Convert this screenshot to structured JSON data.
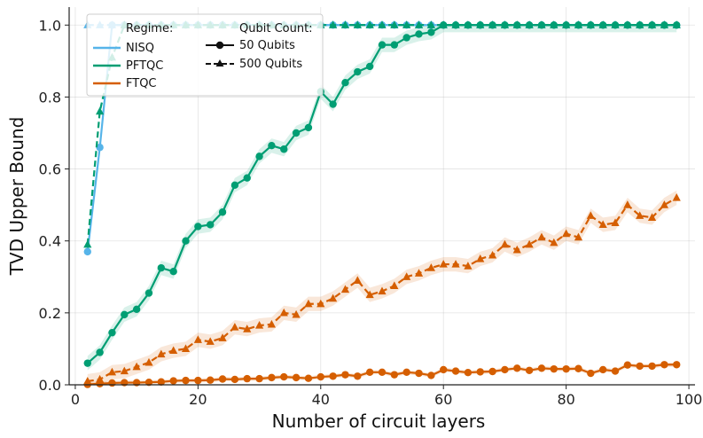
{
  "chart_data": {
    "type": "line",
    "title": "",
    "xlabel": "Number of circuit layers",
    "ylabel": "TVD Upper Bound",
    "xlim": [
      -1,
      101
    ],
    "ylim": [
      0,
      1.05
    ],
    "xticks": [
      0,
      20,
      40,
      60,
      80,
      100
    ],
    "yticks": [
      0.0,
      0.2,
      0.4,
      0.6,
      0.8,
      1.0
    ],
    "xtick_labels": [
      "0",
      "20",
      "40",
      "60",
      "80",
      "100"
    ],
    "ytick_labels": [
      "0.0",
      "0.2",
      "0.4",
      "0.6",
      "0.8",
      "1.0"
    ],
    "grid": true,
    "legend": {
      "placement": "top-left",
      "regime_title": "Regime:",
      "qubit_title": "Qubit Count:",
      "regimes": [
        {
          "label": "NISQ",
          "color": "#56B4E9"
        },
        {
          "label": "PFTQC",
          "color": "#009E73"
        },
        {
          "label": "FTQC",
          "color": "#D55E00"
        }
      ],
      "qubits": [
        {
          "label": "50 Qubits",
          "marker": "circle",
          "dash": "solid"
        },
        {
          "label": "500 Qubits",
          "marker": "triangle",
          "dash": "dashed"
        }
      ]
    },
    "series": [
      {
        "name": "NISQ 50 Qubits",
        "regime": "NISQ",
        "qubits": 50,
        "color": "#56B4E9",
        "marker": "circle",
        "dash": "solid",
        "band": 0,
        "x": [
          2,
          4,
          6,
          8,
          10,
          12,
          14,
          16,
          18,
          20,
          22,
          24,
          26,
          28,
          30,
          32,
          34,
          36,
          38,
          40,
          42,
          44,
          46,
          48,
          50,
          52,
          54,
          56,
          58,
          60,
          62,
          64,
          66,
          68,
          70,
          72,
          74,
          76,
          78,
          80,
          82,
          84,
          86,
          88,
          90,
          92,
          94,
          96,
          98
        ],
        "y": [
          0.37,
          0.66,
          1.0,
          1.0,
          1.0,
          1.0,
          1.0,
          1.0,
          1.0,
          1.0,
          1.0,
          1.0,
          1.0,
          1.0,
          1.0,
          1.0,
          1.0,
          1.0,
          1.0,
          1.0,
          1.0,
          1.0,
          1.0,
          1.0,
          1.0,
          1.0,
          1.0,
          1.0,
          1.0,
          1.0,
          1.0,
          1.0,
          1.0,
          1.0,
          1.0,
          1.0,
          1.0,
          1.0,
          1.0,
          1.0,
          1.0,
          1.0,
          1.0,
          1.0,
          1.0,
          1.0,
          1.0,
          1.0,
          1.0
        ]
      },
      {
        "name": "NISQ 500 Qubits",
        "regime": "NISQ",
        "qubits": 500,
        "color": "#56B4E9",
        "marker": "triangle",
        "dash": "dashed",
        "band": 0,
        "x": [
          2,
          4,
          6,
          8,
          10,
          12,
          14,
          16,
          18,
          20,
          22,
          24,
          26,
          28,
          30,
          32,
          34,
          36,
          38,
          40,
          42,
          44,
          46,
          48,
          50,
          52,
          54,
          56,
          58,
          60,
          62,
          64,
          66,
          68,
          70,
          72,
          74,
          76,
          78,
          80,
          82,
          84,
          86,
          88,
          90,
          92,
          94,
          96,
          98
        ],
        "y": [
          1.0,
          1.0,
          1.0,
          1.0,
          1.0,
          1.0,
          1.0,
          1.0,
          1.0,
          1.0,
          1.0,
          1.0,
          1.0,
          1.0,
          1.0,
          1.0,
          1.0,
          1.0,
          1.0,
          1.0,
          1.0,
          1.0,
          1.0,
          1.0,
          1.0,
          1.0,
          1.0,
          1.0,
          1.0,
          1.0,
          1.0,
          1.0,
          1.0,
          1.0,
          1.0,
          1.0,
          1.0,
          1.0,
          1.0,
          1.0,
          1.0,
          1.0,
          1.0,
          1.0,
          1.0,
          1.0,
          1.0,
          1.0,
          1.0
        ]
      },
      {
        "name": "PFTQC 50 Qubits",
        "regime": "PFTQC",
        "qubits": 50,
        "color": "#009E73",
        "marker": "circle",
        "dash": "solid",
        "band": 0.02,
        "x": [
          2,
          4,
          6,
          8,
          10,
          12,
          14,
          16,
          18,
          20,
          22,
          24,
          26,
          28,
          30,
          32,
          34,
          36,
          38,
          40,
          42,
          44,
          46,
          48,
          50,
          52,
          54,
          56,
          58,
          60,
          62,
          64,
          66,
          68,
          70,
          72,
          74,
          76,
          78,
          80,
          82,
          84,
          86,
          88,
          90,
          92,
          94,
          96,
          98
        ],
        "y": [
          0.06,
          0.09,
          0.145,
          0.195,
          0.21,
          0.255,
          0.325,
          0.315,
          0.4,
          0.44,
          0.445,
          0.48,
          0.555,
          0.575,
          0.635,
          0.665,
          0.655,
          0.7,
          0.715,
          0.815,
          0.78,
          0.84,
          0.87,
          0.885,
          0.945,
          0.945,
          0.965,
          0.975,
          0.98,
          1.0,
          1.0,
          1.0,
          1.0,
          1.0,
          1.0,
          1.0,
          1.0,
          1.0,
          1.0,
          1.0,
          1.0,
          1.0,
          1.0,
          1.0,
          1.0,
          1.0,
          1.0,
          1.0,
          1.0
        ]
      },
      {
        "name": "PFTQC 500 Qubits",
        "regime": "PFTQC",
        "qubits": 500,
        "color": "#009E73",
        "marker": "triangle",
        "dash": "dashed",
        "band": 0,
        "x": [
          2,
          4,
          6,
          8,
          10,
          12,
          14,
          16,
          18,
          20,
          22,
          24,
          26,
          28,
          30,
          32,
          34,
          36,
          38,
          40,
          42,
          44,
          46,
          48,
          50,
          52,
          54,
          56,
          58,
          60,
          62,
          64,
          66,
          68,
          70,
          72,
          74,
          76,
          78,
          80,
          82,
          84,
          86,
          88,
          90,
          92,
          94,
          96,
          98
        ],
        "y": [
          0.39,
          0.76,
          0.91,
          1.0,
          1.0,
          1.0,
          1.0,
          1.0,
          1.0,
          1.0,
          1.0,
          1.0,
          1.0,
          1.0,
          1.0,
          1.0,
          1.0,
          1.0,
          1.0,
          1.0,
          1.0,
          1.0,
          1.0,
          1.0,
          1.0,
          1.0,
          1.0,
          1.0,
          1.0,
          1.0,
          1.0,
          1.0,
          1.0,
          1.0,
          1.0,
          1.0,
          1.0,
          1.0,
          1.0,
          1.0,
          1.0,
          1.0,
          1.0,
          1.0,
          1.0,
          1.0,
          1.0,
          1.0,
          1.0
        ]
      },
      {
        "name": "FTQC 50 Qubits",
        "regime": "FTQC",
        "qubits": 50,
        "color": "#D55E00",
        "marker": "circle",
        "dash": "solid",
        "band": 0.006,
        "x": [
          2,
          4,
          6,
          8,
          10,
          12,
          14,
          16,
          18,
          20,
          22,
          24,
          26,
          28,
          30,
          32,
          34,
          36,
          38,
          40,
          42,
          44,
          46,
          48,
          50,
          52,
          54,
          56,
          58,
          60,
          62,
          64,
          66,
          68,
          70,
          72,
          74,
          76,
          78,
          80,
          82,
          84,
          86,
          88,
          90,
          92,
          94,
          96,
          98
        ],
        "y": [
          0.001,
          0.003,
          0.005,
          0.006,
          0.006,
          0.007,
          0.008,
          0.011,
          0.012,
          0.012,
          0.013,
          0.016,
          0.015,
          0.017,
          0.017,
          0.02,
          0.022,
          0.02,
          0.018,
          0.022,
          0.024,
          0.028,
          0.024,
          0.035,
          0.035,
          0.028,
          0.035,
          0.032,
          0.026,
          0.042,
          0.038,
          0.034,
          0.036,
          0.037,
          0.042,
          0.046,
          0.04,
          0.046,
          0.044,
          0.044,
          0.045,
          0.032,
          0.042,
          0.038,
          0.055,
          0.052,
          0.052,
          0.056,
          0.056
        ]
      },
      {
        "name": "FTQC 500 Qubits",
        "regime": "FTQC",
        "qubits": 500,
        "color": "#D55E00",
        "marker": "triangle",
        "dash": "dashed",
        "band": 0.02,
        "x": [
          2,
          4,
          6,
          8,
          10,
          12,
          14,
          16,
          18,
          20,
          22,
          24,
          26,
          28,
          30,
          32,
          34,
          36,
          38,
          40,
          42,
          44,
          46,
          48,
          50,
          52,
          54,
          56,
          58,
          60,
          62,
          64,
          66,
          68,
          70,
          72,
          74,
          76,
          78,
          80,
          82,
          84,
          86,
          88,
          90,
          92,
          94,
          96,
          98
        ],
        "y": [
          0.01,
          0.015,
          0.035,
          0.038,
          0.05,
          0.062,
          0.085,
          0.095,
          0.1,
          0.125,
          0.12,
          0.13,
          0.16,
          0.155,
          0.165,
          0.168,
          0.2,
          0.195,
          0.225,
          0.225,
          0.24,
          0.265,
          0.29,
          0.25,
          0.26,
          0.275,
          0.3,
          0.31,
          0.325,
          0.335,
          0.335,
          0.33,
          0.35,
          0.36,
          0.39,
          0.375,
          0.39,
          0.41,
          0.395,
          0.42,
          0.41,
          0.47,
          0.445,
          0.45,
          0.5,
          0.47,
          0.465,
          0.5,
          0.52
        ]
      }
    ]
  }
}
